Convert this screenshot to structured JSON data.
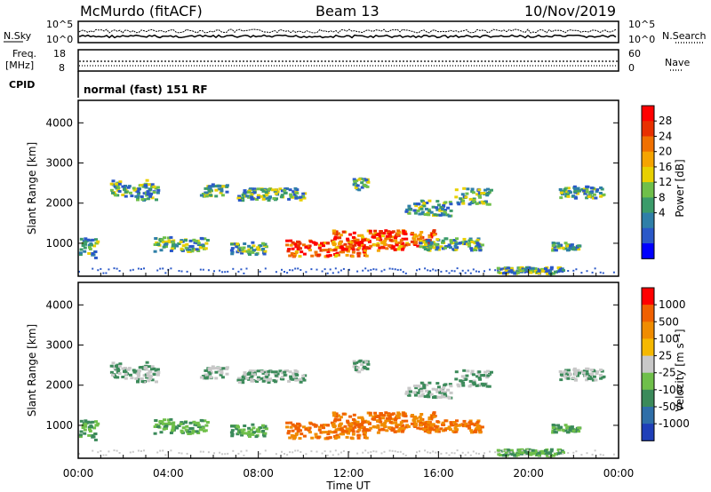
{
  "header": {
    "station": "McMurdo (fitACF)",
    "beam": "Beam 13",
    "date": "10/Nov/2019"
  },
  "top_panels": {
    "nsky_label": "N.Sky",
    "nsky_ticks": [
      "10^5",
      "10^0"
    ],
    "nsearch_label": "N.Search",
    "nsearch_ticks": [
      "10^5",
      "10^0"
    ],
    "freq_label_1": "Freq.",
    "freq_label_2": "[MHz]",
    "freq_ticks": [
      "18",
      "8"
    ],
    "nave_label": "Nave",
    "nave_ticks": [
      "60",
      "0"
    ],
    "cpid_label": "CPID",
    "cpid_value": "normal (fast) 151 RF"
  },
  "chart_data": [
    {
      "type": "heatmap",
      "name": "power",
      "ylabel": "Slant Range [km]",
      "xlabel": "",
      "yticks": [
        "4000",
        "3000",
        "2000",
        "1000"
      ],
      "ylim": [
        180,
        4560
      ],
      "xlim": [
        0,
        24
      ],
      "colorbar_label": "Power [dB]",
      "colorbar_ticks": [
        "28",
        "24",
        "20",
        "16",
        "12",
        "8",
        "4"
      ],
      "colorbar_colors": [
        "#0000ff",
        "#2a58c8",
        "#2f7fa8",
        "#3b9b6a",
        "#6fbf4a",
        "#e8d000",
        "#f5a400",
        "#f07000",
        "#e83000",
        "#ff0000"
      ]
    },
    {
      "type": "heatmap",
      "name": "velocity",
      "ylabel": "Slant Range [km]",
      "xlabel": "Time UT",
      "yticks": [
        "4000",
        "3000",
        "2000",
        "1000"
      ],
      "xticks": [
        "00:00",
        "04:00",
        "08:00",
        "12:00",
        "16:00",
        "20:00",
        "00:00"
      ],
      "ylim": [
        180,
        4560
      ],
      "xlim": [
        0,
        24
      ],
      "colorbar_label": "Velocity [m s⁻¹]",
      "colorbar_ticks": [
        "1000",
        "500",
        "100",
        "25",
        "-25",
        "-100",
        "-500",
        "-1000"
      ],
      "colorbar_colors": [
        "#1f3fb8",
        "#2f6ea8",
        "#3b8a5a",
        "#6fbf4a",
        "#c8c8c8",
        "#f5b800",
        "#f08c00",
        "#f06000",
        "#ff0000"
      ]
    }
  ]
}
